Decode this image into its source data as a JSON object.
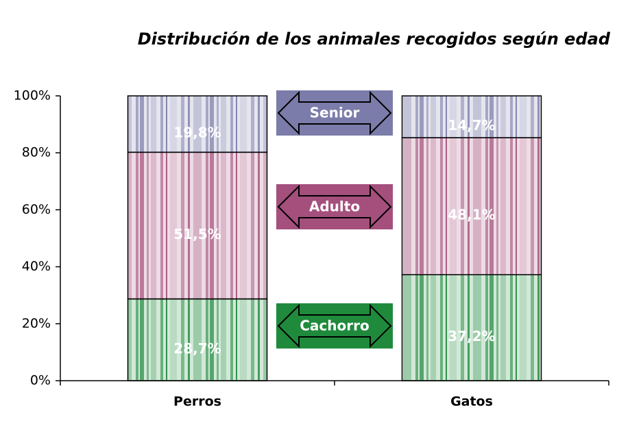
{
  "chart_data": {
    "type": "stacked-bar",
    "title": "Distribución de los animales recogidos según edad",
    "categories": [
      "Perros",
      "Gatos"
    ],
    "series": [
      {
        "name": "Cachorro",
        "color": "#1f8a3c",
        "values": [
          28.7,
          37.2
        ],
        "value_labels": [
          "28,7%",
          "37,2%"
        ]
      },
      {
        "name": "Adulto",
        "color": "#a44f7c",
        "values": [
          51.5,
          48.1
        ],
        "value_labels": [
          "51,5%",
          "48,1%"
        ]
      },
      {
        "name": "Senior",
        "color": "#7c7caa",
        "values": [
          19.8,
          14.7
        ],
        "value_labels": [
          "19,8%",
          "14,7%"
        ]
      }
    ],
    "ylim": [
      0,
      100
    ],
    "yticks": [
      {
        "value": 0,
        "label": "0%"
      },
      {
        "value": 20,
        "label": "20%"
      },
      {
        "value": 40,
        "label": "40%"
      },
      {
        "value": 60,
        "label": "60%"
      },
      {
        "value": 80,
        "label": "80%"
      },
      {
        "value": 100,
        "label": "100%"
      }
    ]
  }
}
